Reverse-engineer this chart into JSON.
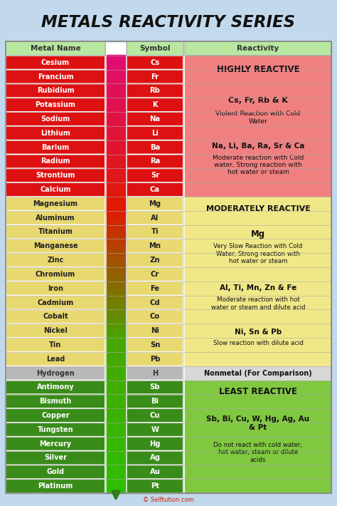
{
  "title": "METALS REACTIVITY SERIES",
  "bg_color": "#c2d8ec",
  "title_color": "#111111",
  "headers": [
    "Metal Name",
    "Symbol",
    "Reactivity"
  ],
  "metals": [
    {
      "name": "Cesium",
      "symbol": "Cs",
      "group": "high"
    },
    {
      "name": "Francium",
      "symbol": "Fr",
      "group": "high"
    },
    {
      "name": "Rubidium",
      "symbol": "Rb",
      "group": "high"
    },
    {
      "name": "Potassium",
      "symbol": "K",
      "group": "high"
    },
    {
      "name": "Sodium",
      "symbol": "Na",
      "group": "high"
    },
    {
      "name": "Lithium",
      "symbol": "Li",
      "group": "high"
    },
    {
      "name": "Barium",
      "symbol": "Ba",
      "group": "high"
    },
    {
      "name": "Radium",
      "symbol": "Ra",
      "group": "high"
    },
    {
      "name": "Strontium",
      "symbol": "Sr",
      "group": "high"
    },
    {
      "name": "Calcium",
      "symbol": "Ca",
      "group": "high"
    },
    {
      "name": "Magnesium",
      "symbol": "Mg",
      "group": "moderate"
    },
    {
      "name": "Aluminum",
      "symbol": "Al",
      "group": "moderate"
    },
    {
      "name": "Titanium",
      "symbol": "Ti",
      "group": "moderate"
    },
    {
      "name": "Manganese",
      "symbol": "Mn",
      "group": "moderate"
    },
    {
      "name": "Zinc",
      "symbol": "Zn",
      "group": "moderate"
    },
    {
      "name": "Chromium",
      "symbol": "Cr",
      "group": "moderate"
    },
    {
      "name": "Iron",
      "symbol": "Fe",
      "group": "moderate"
    },
    {
      "name": "Cadmium",
      "symbol": "Cd",
      "group": "moderate"
    },
    {
      "name": "Cobalt",
      "symbol": "Co",
      "group": "moderate"
    },
    {
      "name": "Nickel",
      "symbol": "Ni",
      "group": "moderate"
    },
    {
      "name": "Tin",
      "symbol": "Sn",
      "group": "moderate"
    },
    {
      "name": "Lead",
      "symbol": "Pb",
      "group": "moderate"
    },
    {
      "name": "Hydrogen",
      "symbol": "H",
      "group": "nonmetal"
    },
    {
      "name": "Antimony",
      "symbol": "Sb",
      "group": "low"
    },
    {
      "name": "Bismuth",
      "symbol": "Bi",
      "group": "low"
    },
    {
      "name": "Copper",
      "symbol": "Cu",
      "group": "low"
    },
    {
      "name": "Tungsten",
      "symbol": "W",
      "group": "low"
    },
    {
      "name": "Mercury",
      "symbol": "Hg",
      "group": "low"
    },
    {
      "name": "Silver",
      "symbol": "Ag",
      "group": "low"
    },
    {
      "name": "Gold",
      "symbol": "Au",
      "group": "low"
    },
    {
      "name": "Platinum",
      "symbol": "Pt",
      "group": "low"
    }
  ],
  "group_bg": {
    "high": "#dd1111",
    "moderate": "#e8d870",
    "nonmetal": "#b8b8b8",
    "low": "#3a8c1a"
  },
  "group_text": {
    "high": "#ffffff",
    "moderate": "#222222",
    "nonmetal": "#333333",
    "low": "#ffffff"
  },
  "section_bg": {
    "high": "#f08080",
    "moderate": "#f0e888",
    "nonmetal": "#d8d8d8",
    "low": "#80c840"
  },
  "header_bg": "#b8e8a0",
  "footer": "© Selftution.com",
  "footer_color": "#cc2200"
}
